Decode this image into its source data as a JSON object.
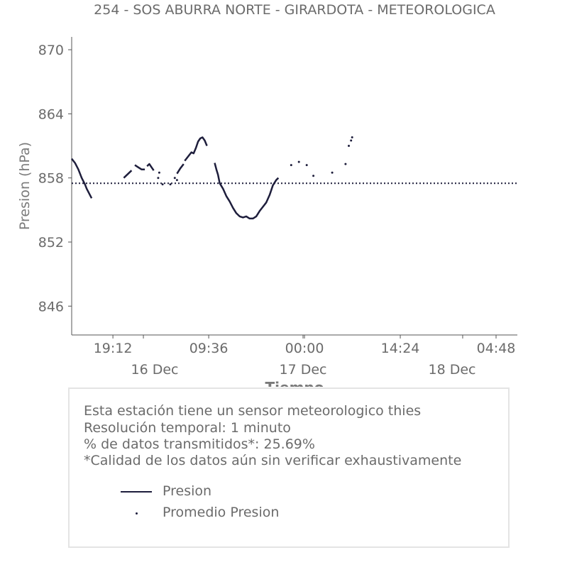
{
  "chart_data": {
    "type": "line",
    "title": "254 - SOS ABURRA NORTE - GIRARDOTA - METEOROLOGICA",
    "xlabel": "Tiempo",
    "ylabel": "Presion (hPa)",
    "ylim": [
      843.3,
      871.2
    ],
    "xlim": [
      "2023-12-15T13:00",
      "2023-12-18T08:00"
    ],
    "x_ticks": [
      "19:12",
      "09:36",
      "00:00",
      "14:24",
      "04:48"
    ],
    "date_labels": [
      "16 Dec",
      "17 Dec",
      "18 Dec"
    ],
    "y_ticks": [
      846,
      852,
      858,
      864,
      870
    ],
    "grid": false,
    "average": {
      "name": "Promedio Presion",
      "value": 857.5,
      "style": "dotted"
    },
    "series": [
      {
        "name": "Presion",
        "color": "#1e1e3c",
        "segments": [
          [
            [
              "2023-12-15T13:00",
              859.8
            ],
            [
              "2023-12-15T13:30",
              859.4
            ],
            [
              "2023-12-15T14:00",
              858.8
            ],
            [
              "2023-12-15T14:30",
              858.0
            ],
            [
              "2023-12-15T15:00",
              857.4
            ],
            [
              "2023-12-15T15:15",
              857.0
            ],
            [
              "2023-12-15T15:40",
              856.5
            ],
            [
              "2023-12-15T16:00",
              856.1
            ]
          ],
          [
            [
              "2023-12-15T20:50",
              858.0
            ],
            [
              "2023-12-15T21:30",
              858.4
            ],
            [
              "2023-12-15T22:00",
              858.7
            ]
          ],
          [
            [
              "2023-12-15T22:30",
              859.2
            ],
            [
              "2023-12-15T23:00",
              859.0
            ],
            [
              "2023-12-15T23:30",
              858.8
            ],
            [
              "2023-12-16T00:00",
              858.8
            ]
          ],
          [
            [
              "2023-12-16T00:20",
              859.1
            ],
            [
              "2023-12-16T00:40",
              859.3
            ],
            [
              "2023-12-16T01:00",
              859.0
            ],
            [
              "2023-12-16T01:20",
              858.7
            ]
          ],
          [
            [
              "2023-12-16T04:50",
              858.4
            ],
            [
              "2023-12-16T05:20",
              858.9
            ],
            [
              "2023-12-16T05:50",
              859.3
            ]
          ],
          [
            [
              "2023-12-16T06:00",
              859.6
            ],
            [
              "2023-12-16T06:30",
              860.0
            ],
            [
              "2023-12-16T07:00",
              860.4
            ],
            [
              "2023-12-16T07:20",
              860.3
            ],
            [
              "2023-12-16T07:40",
              860.8
            ],
            [
              "2023-12-16T08:00",
              861.4
            ],
            [
              "2023-12-16T08:20",
              861.7
            ],
            [
              "2023-12-16T08:40",
              861.8
            ],
            [
              "2023-12-16T09:00",
              861.5
            ],
            [
              "2023-12-16T09:20",
              861.0
            ]
          ],
          [
            [
              "2023-12-16T10:30",
              859.4
            ],
            [
              "2023-12-16T10:45",
              858.8
            ],
            [
              "2023-12-16T11:00",
              858.3
            ],
            [
              "2023-12-16T11:15",
              857.5
            ],
            [
              "2023-12-16T11:45",
              857.0
            ],
            [
              "2023-12-16T12:15",
              856.3
            ],
            [
              "2023-12-16T12:45",
              855.8
            ],
            [
              "2023-12-16T13:15",
              855.2
            ],
            [
              "2023-12-16T13:45",
              854.7
            ],
            [
              "2023-12-16T14:15",
              854.4
            ],
            [
              "2023-12-16T14:45",
              854.3
            ],
            [
              "2023-12-16T15:15",
              854.4
            ],
            [
              "2023-12-16T15:45",
              854.2
            ],
            [
              "2023-12-16T16:15",
              854.2
            ],
            [
              "2023-12-16T16:45",
              854.4
            ],
            [
              "2023-12-16T17:15",
              854.9
            ],
            [
              "2023-12-16T17:45",
              855.3
            ],
            [
              "2023-12-16T18:15",
              855.7
            ],
            [
              "2023-12-16T18:45",
              856.4
            ],
            [
              "2023-12-16T19:15",
              857.3
            ],
            [
              "2023-12-16T19:45",
              857.8
            ],
            [
              "2023-12-16T20:05",
              858.0
            ]
          ]
        ],
        "points": [
          [
            "2023-12-16T02:10",
            858.5
          ],
          [
            "2023-12-16T02:00",
            858.0
          ],
          [
            "2023-12-16T02:40",
            857.4
          ],
          [
            "2023-12-16T03:50",
            857.4
          ],
          [
            "2023-12-16T04:30",
            858.0
          ],
          [
            "2023-12-16T04:50",
            857.8
          ],
          [
            "2023-12-16T22:00",
            859.2
          ],
          [
            "2023-12-16T23:10",
            859.5
          ],
          [
            "2023-12-17T00:20",
            859.2
          ],
          [
            "2023-12-17T01:20",
            858.2
          ],
          [
            "2023-12-17T04:10",
            858.5
          ],
          [
            "2023-12-17T06:10",
            859.3
          ],
          [
            "2023-12-17T06:40",
            861.0
          ],
          [
            "2023-12-17T07:00",
            861.5
          ],
          [
            "2023-12-17T07:10",
            861.8
          ]
        ]
      }
    ]
  },
  "info": {
    "line1": "Esta estación tiene un sensor meteorologico thies",
    "line2": "Resolución temporal: 1 minuto",
    "line3": "% de datos transmitidos*: 25.69%",
    "line4": "*Calidad de los datos aún sin verificar exhaustivamente"
  },
  "legend": {
    "series_label": "Presion",
    "average_label": "Promedio Presion"
  }
}
